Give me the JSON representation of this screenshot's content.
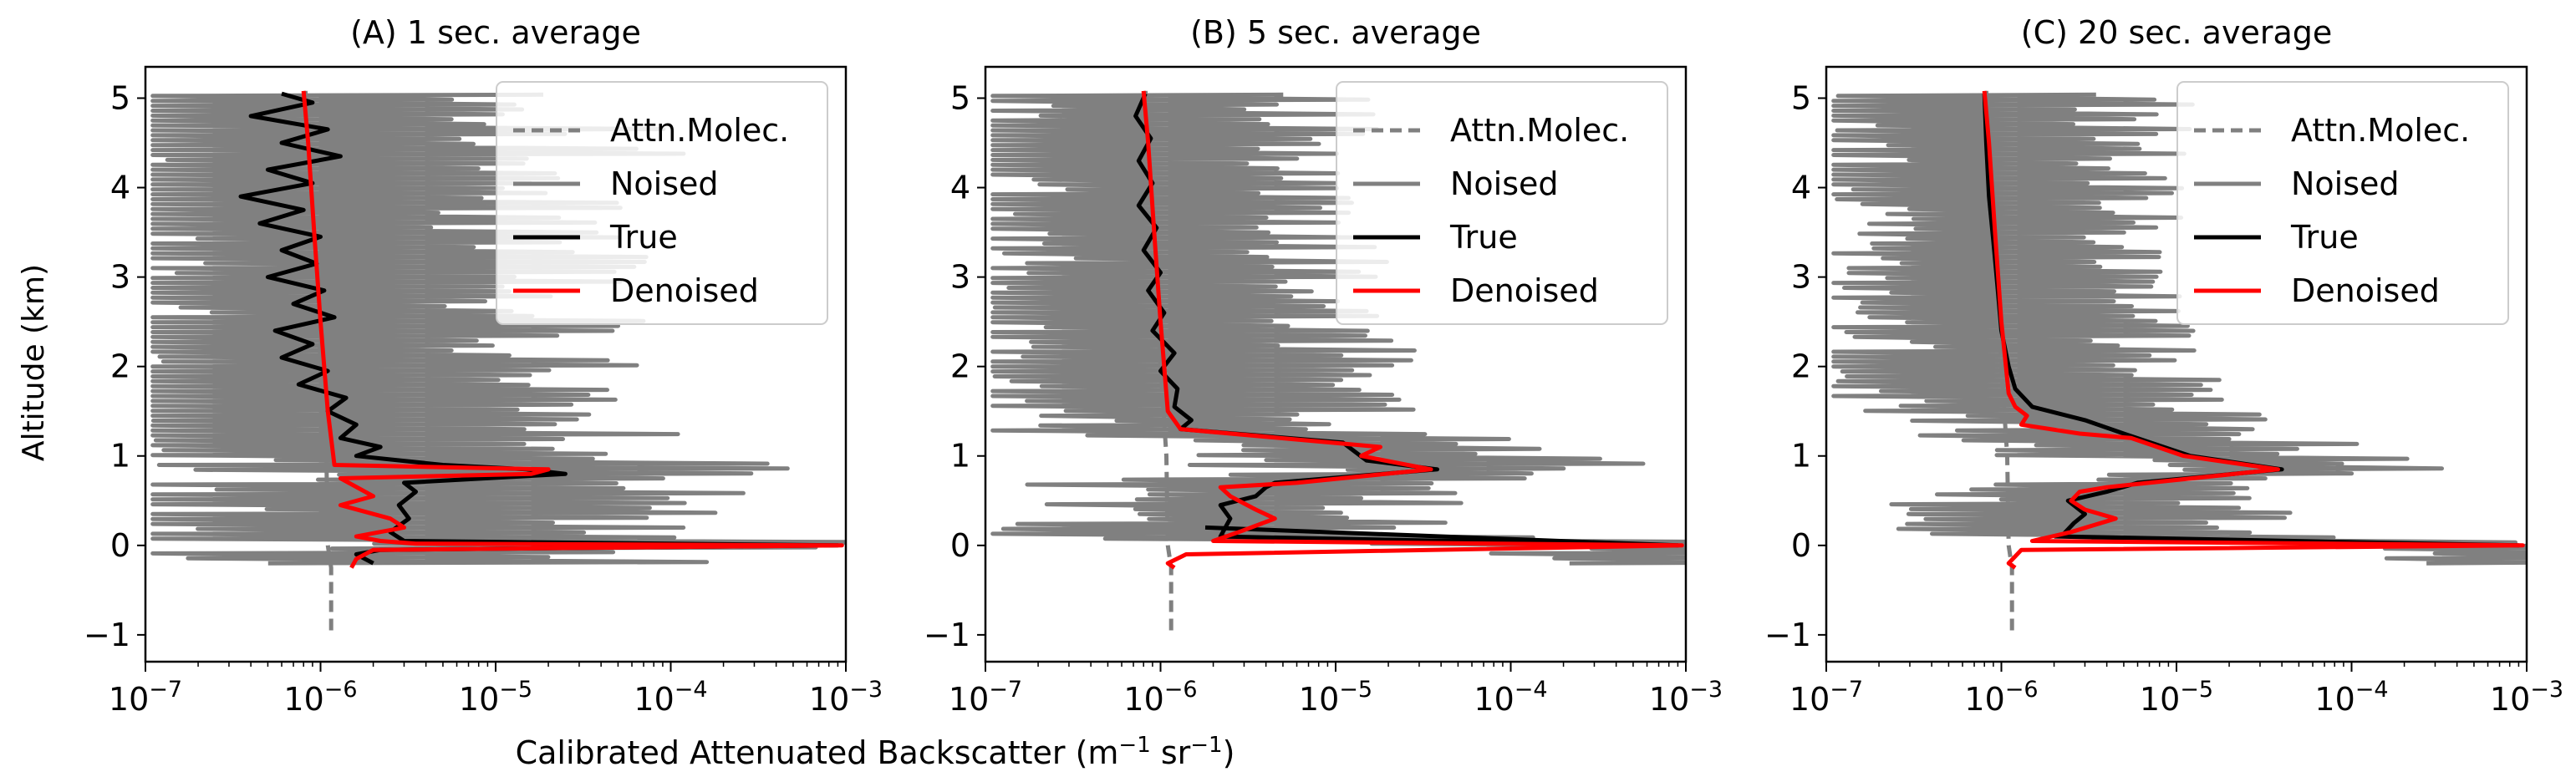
{
  "figure": {
    "shared_xlabel": "Calibrated Attenuated Backscatter (m",
    "shared_xlabel_sup1": "−1",
    "shared_xlabel_mid": " sr",
    "shared_xlabel_sup2": "−1",
    "shared_xlabel_end": ")",
    "shared_ylabel": "Altitude (km)"
  },
  "colors": {
    "molec": "#808080",
    "noised": "#808080",
    "true": "#000000",
    "denoised": "#ff0000"
  },
  "chart_data": [
    {
      "type": "line",
      "title": "(A) 1 sec. average",
      "xscale": "log",
      "xlim": [
        1e-07,
        0.001
      ],
      "ylim": [
        -1.3,
        5.35
      ],
      "xticks": [
        {
          "v": 1e-07,
          "e": "−7"
        },
        {
          "v": 1e-06,
          "e": "−6"
        },
        {
          "v": 1e-05,
          "e": "−5"
        },
        {
          "v": 0.0001,
          "e": "−4"
        },
        {
          "v": 0.001,
          "e": "−3"
        }
      ],
      "tick_base": "10",
      "yticks": [
        "−1",
        "0",
        "1",
        "2",
        "3",
        "4",
        "5"
      ],
      "yticks_values": [
        -1,
        0,
        1,
        2,
        3,
        4,
        5
      ],
      "legend_position": "top-right",
      "legend": [
        "Attn.Molec.",
        "Noised",
        "True",
        "Denoised"
      ],
      "noise_spread": 2.0,
      "series": [
        {
          "name": "Attn.Molec.",
          "style": "dashed",
          "points": [
            [
              1.15e-06,
              -0.95
            ],
            [
              1.15e-06,
              -0.25
            ],
            [
              1.1e-06,
              0.0
            ],
            [
              1.08e-06,
              1.0
            ],
            [
              1e-06,
              2.0
            ],
            [
              9.5e-07,
              3.0
            ],
            [
              8.8e-07,
              4.0
            ],
            [
              8.2e-07,
              5.08
            ]
          ]
        },
        {
          "name": "True",
          "points": [
            [
              2e-06,
              -0.2
            ],
            [
              1.6e-06,
              -0.1
            ],
            [
              2.2e-06,
              -0.05
            ],
            [
              0.0009,
              0.0
            ],
            [
              3e-06,
              0.05
            ],
            [
              2.5e-06,
              0.15
            ],
            [
              3.2e-06,
              0.3
            ],
            [
              2.8e-06,
              0.45
            ],
            [
              3.5e-06,
              0.6
            ],
            [
              3e-06,
              0.7
            ],
            [
              2.5e-05,
              0.8
            ],
            [
              1.5e-05,
              0.85
            ],
            [
              5e-06,
              0.9
            ],
            [
              1.6e-06,
              1.0
            ],
            [
              2.2e-06,
              1.1
            ],
            [
              1.3e-06,
              1.2
            ],
            [
              1.6e-06,
              1.35
            ],
            [
              1.1e-06,
              1.5
            ],
            [
              1.4e-06,
              1.65
            ],
            [
              7.5e-07,
              1.8
            ],
            [
              1.1e-06,
              1.95
            ],
            [
              6e-07,
              2.1
            ],
            [
              9e-07,
              2.25
            ],
            [
              5.5e-07,
              2.4
            ],
            [
              1.2e-06,
              2.55
            ],
            [
              7e-07,
              2.7
            ],
            [
              1.05e-06,
              2.85
            ],
            [
              5e-07,
              3.0
            ],
            [
              9.5e-07,
              3.15
            ],
            [
              6e-07,
              3.3
            ],
            [
              1e-06,
              3.45
            ],
            [
              4.5e-07,
              3.6
            ],
            [
              8e-07,
              3.75
            ],
            [
              3.5e-07,
              3.9
            ],
            [
              9e-07,
              4.05
            ],
            [
              5e-07,
              4.2
            ],
            [
              1.3e-06,
              4.35
            ],
            [
              6e-07,
              4.5
            ],
            [
              1.1e-06,
              4.65
            ],
            [
              4e-07,
              4.8
            ],
            [
              9e-07,
              4.95
            ],
            [
              6e-07,
              5.05
            ]
          ]
        },
        {
          "name": "Denoised",
          "points": [
            [
              1.5e-06,
              -0.25
            ],
            [
              1.6e-06,
              -0.15
            ],
            [
              2e-06,
              -0.05
            ],
            [
              0.00095,
              0.0
            ],
            [
              3.5e-06,
              0.02
            ],
            [
              2.2e-06,
              0.05
            ],
            [
              1.6e-06,
              0.1
            ],
            [
              3e-06,
              0.2
            ],
            [
              2.5e-06,
              0.3
            ],
            [
              1.3e-06,
              0.45
            ],
            [
              2e-06,
              0.55
            ],
            [
              1.3e-06,
              0.75
            ],
            [
              1.6e-05,
              0.8
            ],
            [
              2e-05,
              0.85
            ],
            [
              1.2e-06,
              0.9
            ],
            [
              1.1e-06,
              1.5
            ],
            [
              1e-06,
              2.5
            ],
            [
              9.2e-07,
              3.5
            ],
            [
              8.5e-07,
              4.5
            ],
            [
              8e-07,
              5.08
            ]
          ]
        }
      ]
    },
    {
      "type": "line",
      "title": "(B) 5 sec. average",
      "xscale": "log",
      "xlim": [
        1e-07,
        0.001
      ],
      "ylim": [
        -1.3,
        5.35
      ],
      "xticks": [
        {
          "v": 1e-07,
          "e": "−7"
        },
        {
          "v": 1e-06,
          "e": "−6"
        },
        {
          "v": 1e-05,
          "e": "−5"
        },
        {
          "v": 0.0001,
          "e": "−4"
        },
        {
          "v": 0.001,
          "e": "−3"
        }
      ],
      "tick_base": "10",
      "yticks": [
        "−1",
        "0",
        "1",
        "2",
        "3",
        "4",
        "5"
      ],
      "yticks_values": [
        -1,
        0,
        1,
        2,
        3,
        4,
        5
      ],
      "legend_position": "top-right",
      "legend": [
        "Attn.Molec.",
        "Noised",
        "True",
        "Denoised"
      ],
      "noise_spread": 1.4,
      "series": [
        {
          "name": "Attn.Molec.",
          "style": "dashed",
          "points": [
            [
              1.15e-06,
              -0.95
            ],
            [
              1.15e-06,
              -0.25
            ],
            [
              1.1e-06,
              0.0
            ],
            [
              1.08e-06,
              1.0
            ],
            [
              1e-06,
              2.0
            ],
            [
              9.5e-07,
              3.0
            ],
            [
              8.8e-07,
              4.0
            ],
            [
              8.2e-07,
              5.08
            ]
          ]
        },
        {
          "name": "True",
          "points": [
            [
              1.8e-06,
              0.2
            ],
            [
              0.0009,
              0.0
            ],
            [
              2.2e-06,
              0.1
            ],
            [
              2.5e-06,
              0.3
            ],
            [
              2.2e-06,
              0.45
            ],
            [
              3.5e-06,
              0.55
            ],
            [
              4e-06,
              0.65
            ],
            [
              4.5e-06,
              0.7
            ],
            [
              3.8e-05,
              0.85
            ],
            [
              1.5e-05,
              0.95
            ],
            [
              1.1e-05,
              1.15
            ],
            [
              1.3e-06,
              1.3
            ],
            [
              1.5e-06,
              1.4
            ],
            [
              1.2e-06,
              1.55
            ],
            [
              1.25e-06,
              1.75
            ],
            [
              1e-06,
              1.95
            ],
            [
              1.2e-06,
              2.15
            ],
            [
              9e-07,
              2.4
            ],
            [
              1.05e-06,
              2.6
            ],
            [
              8.5e-07,
              2.85
            ],
            [
              1e-06,
              3.05
            ],
            [
              8e-07,
              3.3
            ],
            [
              9.5e-07,
              3.55
            ],
            [
              7.5e-07,
              3.8
            ],
            [
              9e-07,
              4.05
            ],
            [
              7.5e-07,
              4.3
            ],
            [
              8.8e-07,
              4.55
            ],
            [
              7.2e-07,
              4.8
            ],
            [
              8.2e-07,
              5.05
            ]
          ]
        },
        {
          "name": "Denoised",
          "points": [
            [
              1.2e-06,
              -0.25
            ],
            [
              1.1e-06,
              -0.2
            ],
            [
              1.4e-06,
              -0.1
            ],
            [
              0.00095,
              0.0
            ],
            [
              2e-06,
              0.05
            ],
            [
              2.8e-06,
              0.15
            ],
            [
              4.5e-06,
              0.3
            ],
            [
              3.5e-06,
              0.4
            ],
            [
              2.5e-06,
              0.55
            ],
            [
              2.2e-06,
              0.65
            ],
            [
              6e-06,
              0.7
            ],
            [
              3.5e-05,
              0.85
            ],
            [
              1.4e-05,
              1.0
            ],
            [
              1.8e-05,
              1.1
            ],
            [
              1.3e-06,
              1.3
            ],
            [
              1.1e-06,
              1.5
            ],
            [
              1e-06,
              2.5
            ],
            [
              9.2e-07,
              3.5
            ],
            [
              8.5e-07,
              4.5
            ],
            [
              8e-07,
              5.08
            ]
          ]
        }
      ]
    },
    {
      "type": "line",
      "title": "(C) 20 sec. average",
      "xscale": "log",
      "xlim": [
        1e-07,
        0.001
      ],
      "ylim": [
        -1.3,
        5.35
      ],
      "xticks": [
        {
          "v": 1e-07,
          "e": "−7"
        },
        {
          "v": 1e-06,
          "e": "−6"
        },
        {
          "v": 1e-05,
          "e": "−5"
        },
        {
          "v": 0.0001,
          "e": "−4"
        },
        {
          "v": 0.001,
          "e": "−3"
        }
      ],
      "tick_base": "10",
      "yticks": [
        "−1",
        "0",
        "1",
        "2",
        "3",
        "4",
        "5"
      ],
      "yticks_values": [
        -1,
        0,
        1,
        2,
        3,
        4,
        5
      ],
      "legend_position": "top-right",
      "legend": [
        "Attn.Molec.",
        "Noised",
        "True",
        "Denoised"
      ],
      "noise_spread": 1.2,
      "series": [
        {
          "name": "Attn.Molec.",
          "style": "dashed",
          "points": [
            [
              1.15e-06,
              -0.95
            ],
            [
              1.15e-06,
              -0.25
            ],
            [
              1.1e-06,
              0.0
            ],
            [
              1.08e-06,
              1.0
            ],
            [
              1e-06,
              2.0
            ],
            [
              9.5e-07,
              3.0
            ],
            [
              8.8e-07,
              4.0
            ],
            [
              8.2e-07,
              5.08
            ]
          ]
        },
        {
          "name": "True",
          "points": [
            [
              2e-06,
              0.1
            ],
            [
              0.0009,
              0.0
            ],
            [
              2.2e-06,
              0.1
            ],
            [
              2.6e-06,
              0.25
            ],
            [
              3e-06,
              0.35
            ],
            [
              2.4e-06,
              0.5
            ],
            [
              4e-06,
              0.6
            ],
            [
              6e-06,
              0.7
            ],
            [
              4e-05,
              0.85
            ],
            [
              1.2e-05,
              1.0
            ],
            [
              5e-06,
              1.25
            ],
            [
              3e-06,
              1.4
            ],
            [
              1.5e-06,
              1.55
            ],
            [
              1.2e-06,
              1.75
            ],
            [
              1.1e-06,
              2.0
            ],
            [
              1e-06,
              2.4
            ],
            [
              9.5e-07,
              2.9
            ],
            [
              9e-07,
              3.4
            ],
            [
              8.5e-07,
              3.9
            ],
            [
              8.2e-07,
              4.5
            ],
            [
              8e-07,
              5.05
            ]
          ]
        },
        {
          "name": "Denoised",
          "points": [
            [
              1.2e-06,
              -0.25
            ],
            [
              1.1e-06,
              -0.2
            ],
            [
              1.3e-06,
              -0.05
            ],
            [
              0.00095,
              0.0
            ],
            [
              1.5e-06,
              0.05
            ],
            [
              2.5e-06,
              0.15
            ],
            [
              4.5e-06,
              0.3
            ],
            [
              3e-06,
              0.4
            ],
            [
              2.5e-06,
              0.5
            ],
            [
              2.8e-06,
              0.6
            ],
            [
              4e-06,
              0.65
            ],
            [
              3.8e-05,
              0.85
            ],
            [
              1.1e-05,
              1.0
            ],
            [
              5.5e-06,
              1.2
            ],
            [
              2.8e-06,
              1.25
            ],
            [
              1.3e-06,
              1.35
            ],
            [
              1.4e-06,
              1.45
            ],
            [
              1.2e-06,
              1.55
            ],
            [
              1.1e-06,
              1.7
            ],
            [
              1e-06,
              2.5
            ],
            [
              9.2e-07,
              3.5
            ],
            [
              8.5e-07,
              4.5
            ],
            [
              8e-07,
              5.08
            ]
          ]
        }
      ]
    }
  ]
}
